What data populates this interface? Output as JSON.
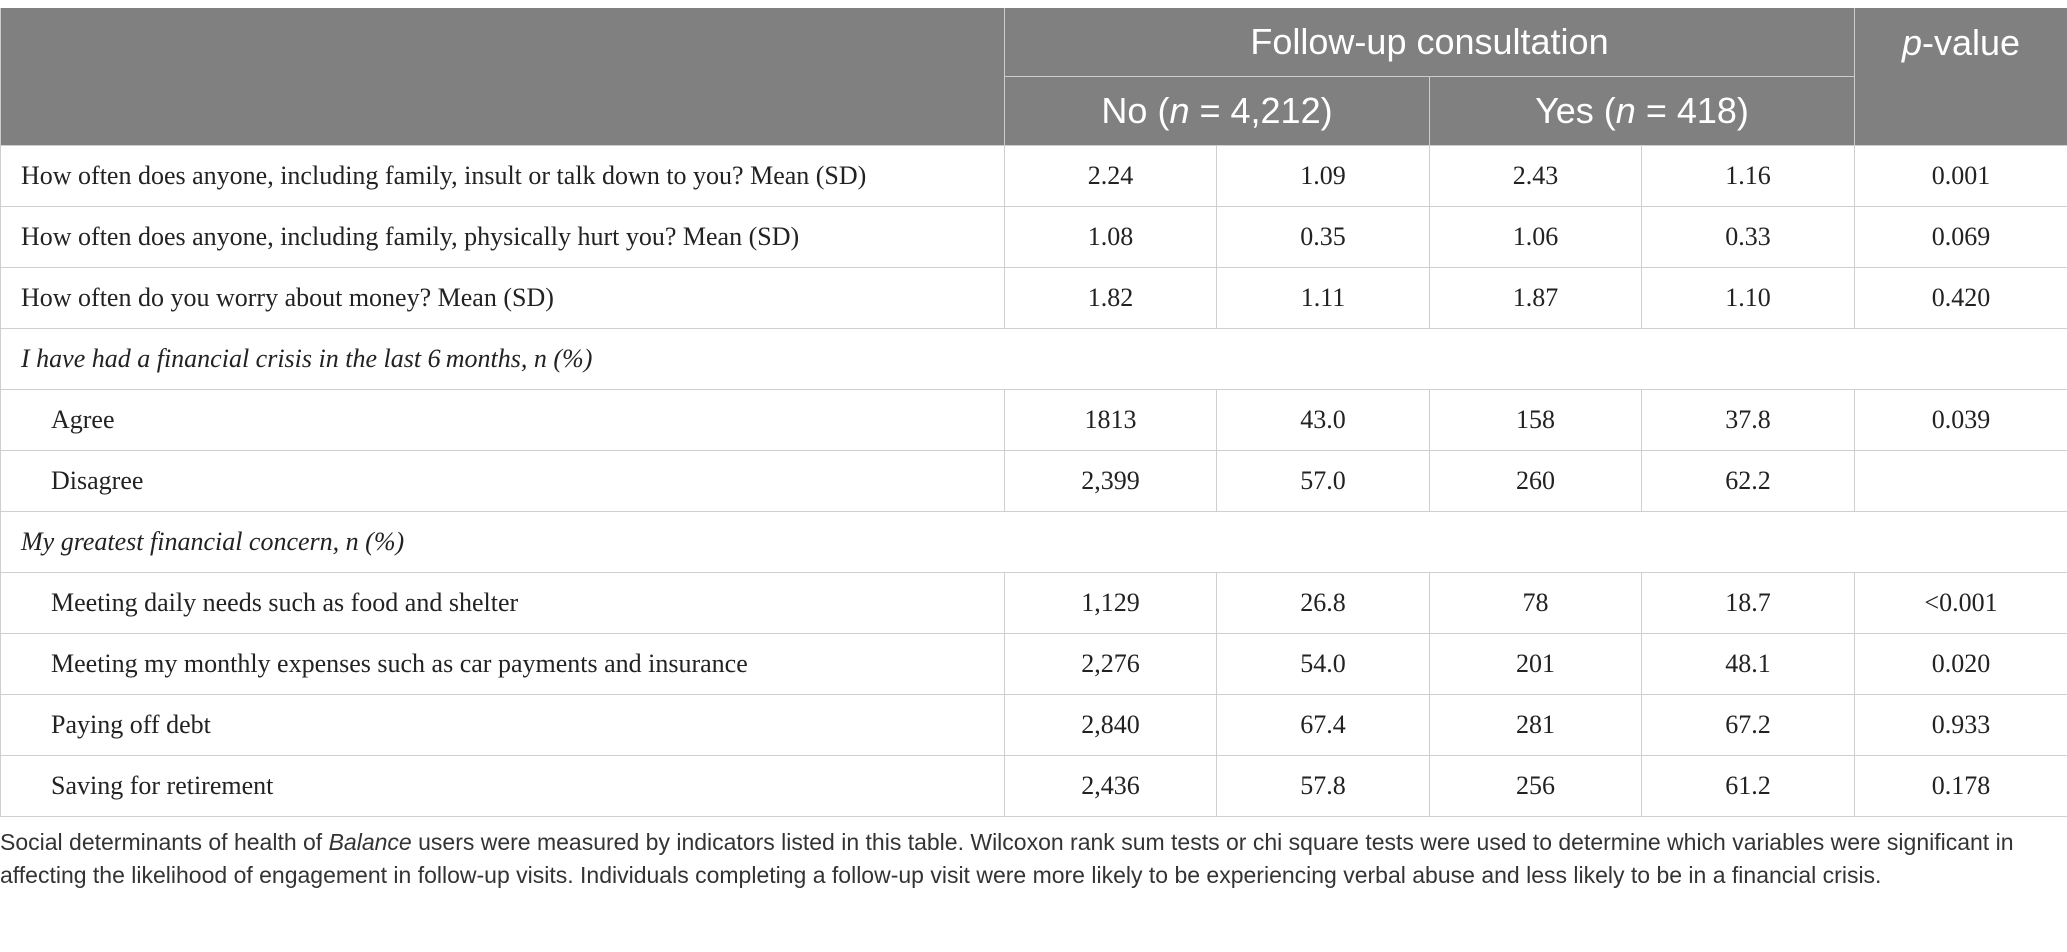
{
  "header": {
    "group_label": "Follow-up consultation",
    "pvalue_p": "p",
    "pvalue_rest": "-value",
    "no_pre": "No (",
    "no_n": "n",
    "no_post": " = 4,212)",
    "yes_pre": "Yes (",
    "yes_n": "n",
    "yes_post": " = 418)"
  },
  "rows": [
    {
      "label": "How often does anyone, including family, insult or talk down to you? Mean (SD)",
      "v": [
        "2.24",
        "1.09",
        "2.43",
        "1.16",
        "0.001"
      ]
    },
    {
      "label": "How often does anyone, including family, physically hurt you? Mean (SD)",
      "v": [
        "1.08",
        "0.35",
        "1.06",
        "0.33",
        "0.069"
      ]
    },
    {
      "label": "How often do you worry about money? Mean (SD)",
      "v": [
        "1.82",
        "1.11",
        "1.87",
        "1.10",
        "0.420"
      ]
    },
    {
      "section": "I have had a financial crisis in the last 6 months, n (%)"
    },
    {
      "label": "Agree",
      "sub": true,
      "v": [
        "1813",
        "43.0",
        "158",
        "37.8",
        "0.039"
      ]
    },
    {
      "label": "Disagree",
      "sub": true,
      "v": [
        "2,399",
        "57.0",
        "260",
        "62.2",
        ""
      ]
    },
    {
      "section": "My greatest financial concern, n (%)"
    },
    {
      "label": "Meeting daily needs such as food and shelter",
      "sub": true,
      "v": [
        "1,129",
        "26.8",
        "78",
        "18.7",
        "<0.001"
      ]
    },
    {
      "label": "Meeting my monthly expenses such as car payments and insurance",
      "sub": true,
      "v": [
        "2,276",
        "54.0",
        "201",
        "48.1",
        "0.020"
      ]
    },
    {
      "label": "Paying off debt",
      "sub": true,
      "v": [
        "2,840",
        "67.4",
        "281",
        "67.2",
        "0.933"
      ]
    },
    {
      "label": "Saving for retirement",
      "sub": true,
      "v": [
        "2,436",
        "57.8",
        "256",
        "61.2",
        "0.178"
      ]
    }
  ],
  "footnote": {
    "part1": "Social determinants of health of ",
    "italic": "Balance",
    "part2": " users were measured by indicators listed in this table. Wilcoxon rank sum tests or chi square tests were used to determine which variables were significant in affecting the likelihood of engagement in follow-up visits. Individuals completing a follow-up visit were more likely to be experiencing verbal abuse and less likely to be in a financial crisis."
  }
}
